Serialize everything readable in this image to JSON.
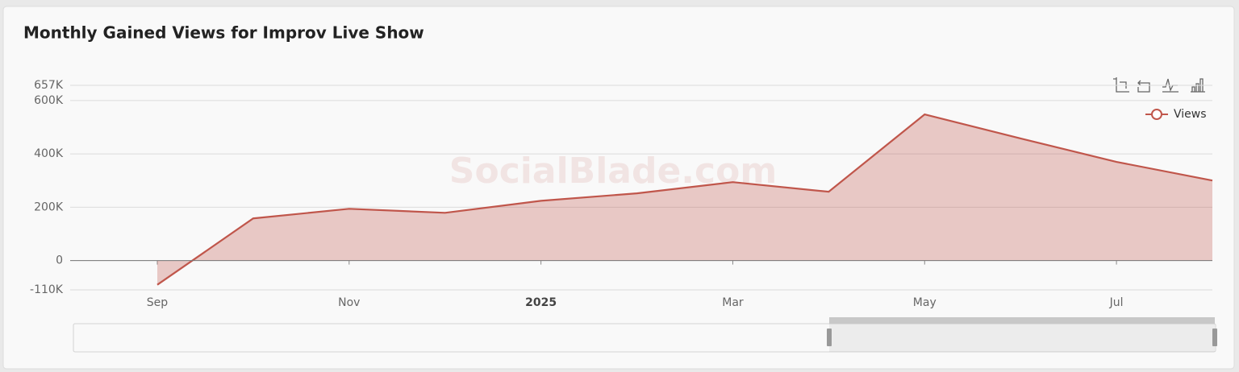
{
  "chart_data": {
    "type": "area",
    "title": "Monthly Gained Views for Improv Live Show",
    "watermark": "SocialBlade.com",
    "categories": [
      "Sep",
      null,
      "Nov",
      null,
      "2025",
      null,
      "Mar",
      null,
      "May",
      null,
      "Jul",
      null
    ],
    "series": [
      {
        "name": "Views",
        "color": "#c0564b",
        "values": [
          -91000,
          158000,
          194000,
          179000,
          224000,
          252000,
          294000,
          258000,
          548000,
          458000,
          370000,
          300000
        ]
      }
    ],
    "ylim": [
      -110000,
      657000
    ],
    "yticks": [
      {
        "value": -110000,
        "label": "-110K"
      },
      0,
      {
        "value": 200000,
        "label": "200K"
      },
      {
        "value": 400000,
        "label": "400K"
      },
      {
        "value": 600000,
        "label": "600K"
      },
      {
        "value": 657000,
        "label": "657K"
      }
    ],
    "grid": true,
    "legend": "top-right"
  }
}
